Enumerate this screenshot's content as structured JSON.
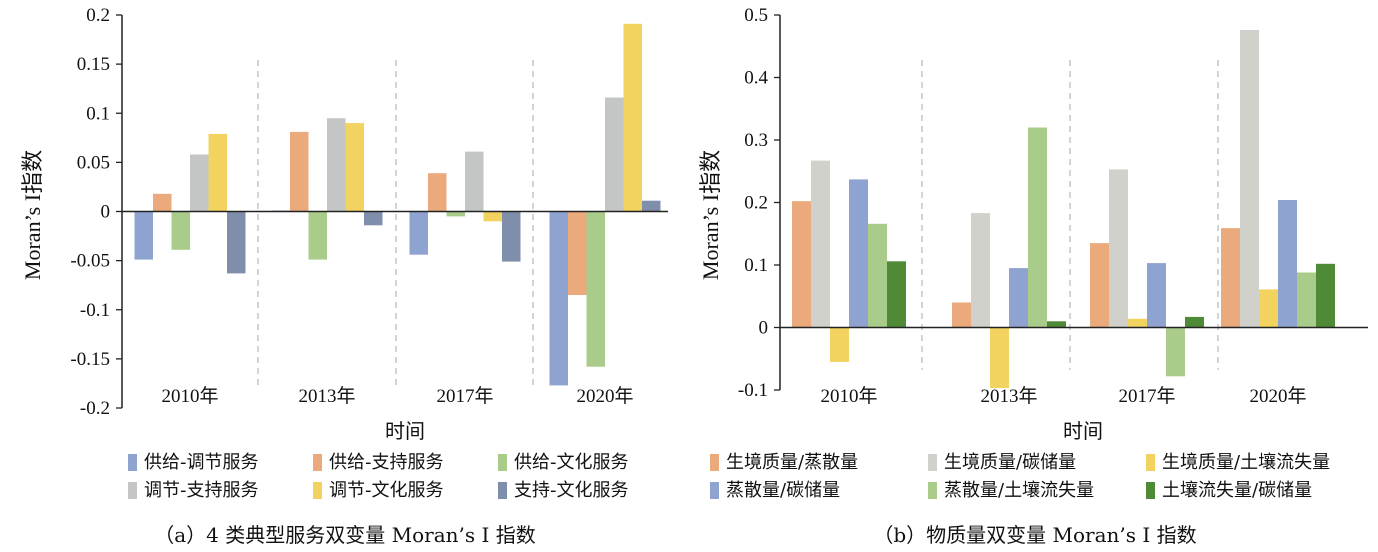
{
  "chart_data": [
    {
      "type": "bar",
      "caption": "（a）4 类典型服务双变量 Moran’s I 指数",
      "xlabel": "时间",
      "ylabel": "Moran’s I指数",
      "categories": [
        "2010年",
        "2013年",
        "2017年",
        "2020年"
      ],
      "ylim": [
        -0.2,
        0.2
      ],
      "yticks": [
        "0.2",
        "0.15",
        "0.1",
        "0.05",
        "0",
        "-0.05",
        "-0.1",
        "-0.15",
        "-0.2"
      ],
      "ytick_values": [
        0.2,
        0.15,
        0.1,
        0.05,
        0,
        -0.05,
        -0.1,
        -0.15,
        -0.2
      ],
      "legend_position": "bottom",
      "grid": false,
      "series": [
        {
          "name": "供给-调节服务",
          "color": "#8fa3d1",
          "values": [
            -0.049,
            0.001,
            -0.044,
            -0.177
          ]
        },
        {
          "name": "供给-支持服务",
          "color": "#eaaa7c",
          "values": [
            0.018,
            0.081,
            0.039,
            -0.085
          ]
        },
        {
          "name": "供给-文化服务",
          "color": "#a9cc8a",
          "values": [
            -0.039,
            -0.049,
            -0.005,
            -0.158
          ]
        },
        {
          "name": "调节-支持服务",
          "color": "#c4c6c6",
          "values": [
            0.058,
            0.095,
            0.061,
            0.116
          ]
        },
        {
          "name": "调节-文化服务",
          "color": "#f2d35f",
          "values": [
            0.079,
            0.09,
            -0.01,
            0.191
          ]
        },
        {
          "name": "支持-文化服务",
          "color": "#7f8eab",
          "values": [
            -0.063,
            -0.014,
            -0.051,
            0.011
          ]
        }
      ]
    },
    {
      "type": "bar",
      "caption": "（b）物质量双变量 Moran’s I 指数",
      "xlabel": "时间",
      "ylabel": "Moran’s I指数",
      "categories": [
        "2010年",
        "2013年",
        "2017年",
        "2020年"
      ],
      "ylim": [
        -0.1,
        0.5
      ],
      "yticks": [
        "0.5",
        "0.4",
        "0.3",
        "0.2",
        "0.1",
        "0",
        "-0.1"
      ],
      "ytick_values": [
        0.5,
        0.4,
        0.3,
        0.2,
        0.1,
        0,
        -0.1
      ],
      "legend_position": "bottom",
      "grid": false,
      "series": [
        {
          "name": "生境质量/蒸散量",
          "color": "#eaaa7c",
          "values": [
            0.202,
            0.04,
            0.135,
            0.159
          ]
        },
        {
          "name": "生境质量/碳储量",
          "color": "#d1d1cc",
          "values": [
            0.267,
            0.183,
            0.253,
            0.476
          ]
        },
        {
          "name": "生境质量/土壤流失量",
          "color": "#f2d35f",
          "values": [
            -0.055,
            -0.097,
            0.014,
            0.061
          ]
        },
        {
          "name": "蒸散量/碳储量",
          "color": "#8fa3d1",
          "values": [
            0.237,
            0.095,
            0.103,
            0.204
          ]
        },
        {
          "name": "蒸散量/土壤流失量",
          "color": "#a9cc8a",
          "values": [
            0.166,
            0.32,
            -0.078,
            0.088
          ]
        },
        {
          "name": "土壤流失量/碳储量",
          "color": "#4f8a37",
          "values": [
            0.106,
            0.01,
            0.017,
            0.102
          ]
        }
      ]
    }
  ]
}
